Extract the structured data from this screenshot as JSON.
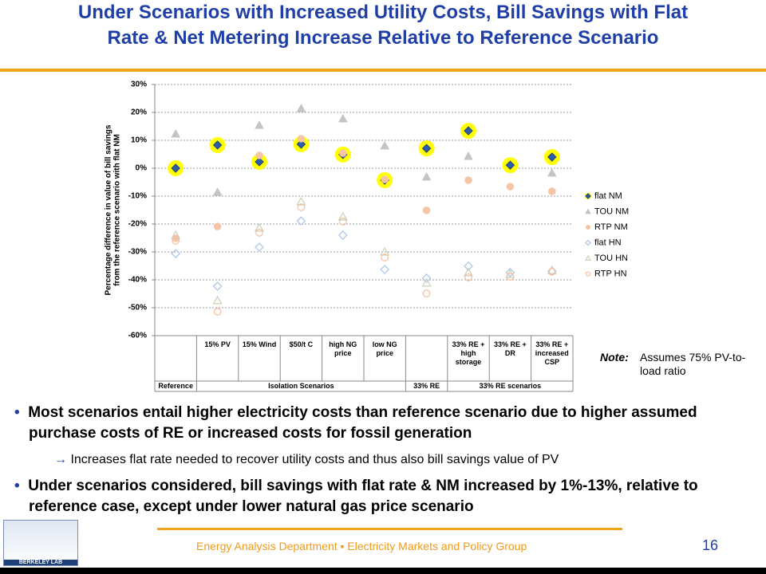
{
  "header": {
    "title_lines": [
      "Under Scenarios with Increased Utility Costs, Bill Savings with Flat",
      "Rate & Net Metering Increase Relative to Reference Scenario"
    ]
  },
  "chart_data": {
    "type": "scatter",
    "ylabel": [
      "Percentage difference in value of bill savings",
      "from the reference scenario with flat NM"
    ],
    "categories": [
      null,
      "15% PV",
      "15% Wind",
      "$50/t C",
      "high NG price",
      "low NG price",
      null,
      "33% RE + high storage",
      "33% RE + DR",
      "33% RE + increased CSP"
    ],
    "groups": [
      {
        "label": "Reference",
        "span": 1
      },
      {
        "label": "Isolation Scenarios",
        "span": 5
      },
      {
        "label": "33% RE",
        "span": 1
      },
      {
        "label": "33% RE scenarios",
        "span": 3
      }
    ],
    "ylim": [
      -60,
      30
    ],
    "yticks": [
      {
        "value": 30,
        "label": "30%"
      },
      {
        "value": 20,
        "label": "20%"
      },
      {
        "value": 10,
        "label": "10%"
      },
      {
        "value": 0,
        "label": "0%"
      },
      {
        "value": -10,
        "label": "-10%"
      },
      {
        "value": -20,
        "label": "-20%"
      },
      {
        "value": -30,
        "label": "-30%"
      },
      {
        "value": -40,
        "label": "-40%"
      },
      {
        "value": -50,
        "label": "-50%"
      },
      {
        "value": -60,
        "label": "-60%"
      }
    ],
    "grid": true,
    "series": [
      {
        "name": "flat NM",
        "color": "#2e5fa8",
        "marker": "diamond",
        "filled": true,
        "highlight": "#ffff00",
        "values": [
          0,
          8.3,
          2.3,
          8.6,
          4.9,
          -4.3,
          7.1,
          13.4,
          1.1,
          4.0
        ]
      },
      {
        "name": "TOU NM",
        "color": "#c4c4c4",
        "marker": "triangle",
        "filled": true,
        "values": [
          12.3,
          -8.6,
          15.4,
          21.4,
          17.7,
          8.0,
          -3.1,
          4.3,
          null,
          -1.7
        ]
      },
      {
        "name": "RTP NM",
        "color": "#f6c4a6",
        "marker": "circle",
        "filled": true,
        "values": [
          -25.1,
          -20.9,
          4.6,
          10.6,
          5.4,
          -4.0,
          -15.1,
          -4.3,
          -6.6,
          -8.3
        ]
      },
      {
        "name": "flat HN",
        "color": "#a9c4ea",
        "marker": "diamond",
        "filled": false,
        "values": [
          -30.6,
          -42.3,
          -28.3,
          -18.9,
          -24.0,
          -36.3,
          -39.4,
          -35.1,
          -37.4,
          -36.9
        ]
      },
      {
        "name": "TOU HN",
        "color": "#c6d2b8",
        "marker": "triangle",
        "filled": false,
        "values": [
          -24.0,
          -47.4,
          -21.4,
          -12.0,
          -17.4,
          -30.0,
          -41.1,
          -37.4,
          -38.0,
          -36.6
        ]
      },
      {
        "name": "RTP HN",
        "color": "#f6bc9c",
        "marker": "circle",
        "filled": false,
        "values": [
          -26.0,
          -51.4,
          -23.1,
          -14.0,
          -19.1,
          -32.0,
          -44.9,
          -39.1,
          -38.9,
          -37.1
        ]
      }
    ]
  },
  "note": {
    "label": "Note:",
    "text": "Assumes 75% PV-to-load ratio"
  },
  "bullets": [
    {
      "text": "Most scenarios entail higher electricity costs than reference scenario due to higher assumed purchase costs of RE or increased costs for fossil generation",
      "sub": "Increases flat rate needed to recover utility costs and thus also bill savings value of PV"
    },
    {
      "text": "Under scenarios considered, bill savings with flat rate & NM increased by 1%-13%, relative to reference case, except under lower natural gas price scenario"
    }
  ],
  "footer": {
    "text": "Energy Analysis Department ▪ Electricity Markets and Policy Group",
    "page": "16",
    "logo": "BERKELEY LAB"
  }
}
